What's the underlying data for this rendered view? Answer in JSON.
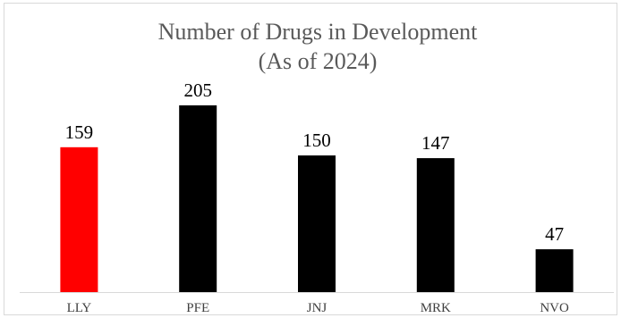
{
  "chart_data": {
    "type": "bar",
    "title": "Number of Drugs in Development",
    "subtitle": "(As of 2024)",
    "categories": [
      "LLY",
      "PFE",
      "JNJ",
      "MRK",
      "NVO"
    ],
    "values": [
      159,
      205,
      150,
      147,
      47
    ],
    "data_labels": [
      "159",
      "205",
      "150",
      "147",
      "47"
    ],
    "bar_colors": [
      "#ff0000",
      "#000000",
      "#000000",
      "#000000",
      "#000000"
    ],
    "ylim": [
      0,
      250
    ],
    "xlabel": "",
    "ylabel": "",
    "grid": false,
    "legend": "none",
    "y_axis_visible": false
  }
}
